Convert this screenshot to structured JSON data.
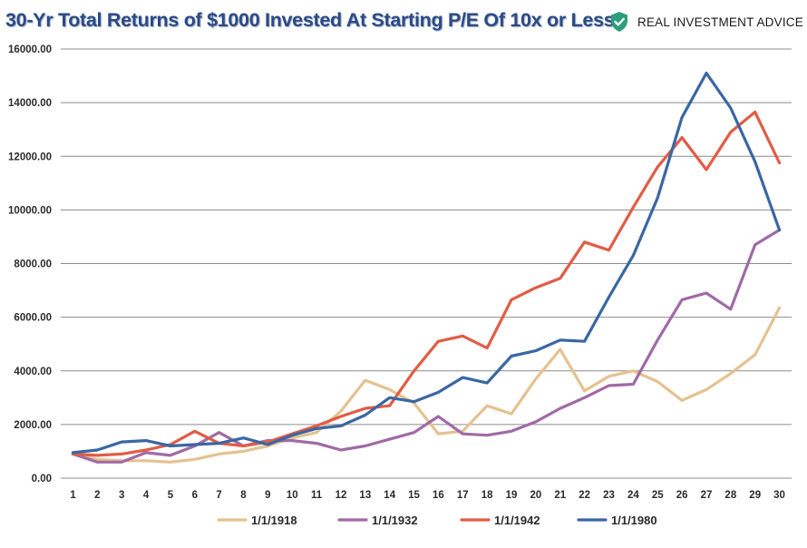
{
  "title": "30-Yr Total Returns of $1000 Invested At Starting P/E Of 10x or Less",
  "brand": {
    "name": "REAL INVESTMENT ADVICE",
    "icon": "shield-check-icon",
    "icon_color": "#2e9e7a"
  },
  "chart_data": {
    "type": "line",
    "title": "30-Yr Total Returns of $1000 Invested At Starting P/E Of 10x or Less",
    "xlabel": "",
    "ylabel": "",
    "ylim": [
      0,
      16000
    ],
    "y_ticks": [
      "0.00",
      "2000.00",
      "4000.00",
      "6000.00",
      "8000.00",
      "10000.00",
      "12000.00",
      "14000.00",
      "16000.00"
    ],
    "x": [
      "1",
      "2",
      "3",
      "4",
      "5",
      "6",
      "7",
      "8",
      "9",
      "10",
      "11",
      "12",
      "13",
      "14",
      "15",
      "16",
      "17",
      "18",
      "19",
      "20",
      "21",
      "22",
      "23",
      "24",
      "25",
      "26",
      "27",
      "28",
      "29",
      "30"
    ],
    "grid": "horizontal",
    "legend_position": "bottom",
    "series": [
      {
        "name": "1/1/1918",
        "color": "#e4c290",
        "values": [
          900,
          700,
          650,
          650,
          600,
          700,
          900,
          1000,
          1200,
          1500,
          1700,
          2500,
          3650,
          3300,
          2800,
          1650,
          1750,
          2700,
          2400,
          3700,
          4800,
          3250,
          3800,
          4000,
          3600,
          2900,
          3300,
          3900,
          4600,
          6350
        ]
      },
      {
        "name": "1/1/1932",
        "color": "#a06aa6",
        "values": [
          900,
          600,
          600,
          950,
          850,
          1200,
          1700,
          1200,
          1400,
          1400,
          1300,
          1050,
          1200,
          1450,
          1700,
          2300,
          1650,
          1600,
          1750,
          2100,
          2600,
          3000,
          3450,
          3500,
          5150,
          6650,
          6900,
          6300,
          8700,
          9250
        ]
      },
      {
        "name": "1/1/1942",
        "color": "#e25c45",
        "values": [
          900,
          850,
          900,
          1050,
          1250,
          1750,
          1300,
          1200,
          1350,
          1650,
          1950,
          2300,
          2600,
          2700,
          4000,
          5100,
          5300,
          4850,
          6650,
          7100,
          7450,
          8800,
          8500,
          10100,
          11600,
          12700,
          11500,
          12900,
          13650,
          11750
        ]
      },
      {
        "name": "1/1/1980",
        "color": "#3a67a3",
        "values": [
          950,
          1050,
          1350,
          1400,
          1200,
          1250,
          1300,
          1500,
          1250,
          1600,
          1850,
          1950,
          2350,
          3000,
          2850,
          3200,
          3750,
          3550,
          4550,
          4750,
          5150,
          5100,
          6750,
          8300,
          10450,
          13450,
          15100,
          13800,
          11800,
          9250
        ]
      }
    ]
  }
}
